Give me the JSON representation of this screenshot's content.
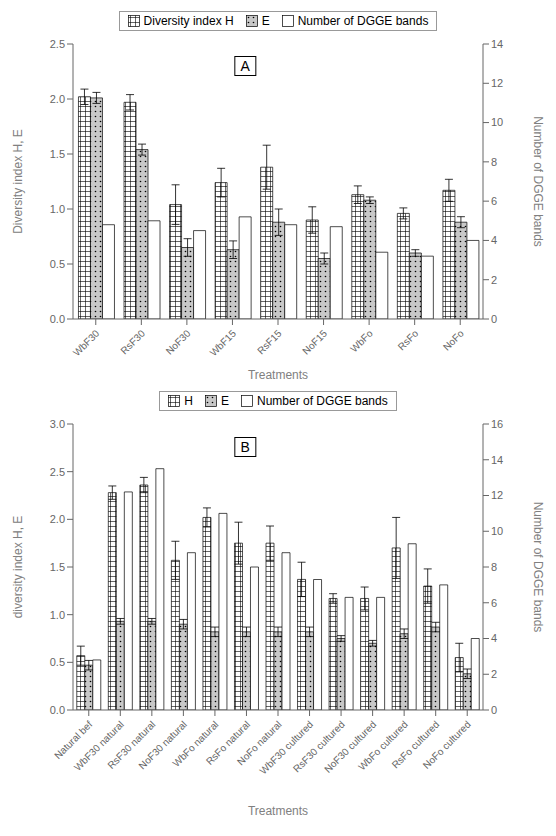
{
  "chart_data": [
    {
      "type": "bar",
      "title": "A",
      "xlabel": "Treatments",
      "ylabel": "Diversity index H, E",
      "y2label": "Number of DGGE bands",
      "categories": [
        "WbF30",
        "RsF30",
        "NoF30",
        "WbF15",
        "RsF15",
        "NoF15",
        "WbFo",
        "RsFo",
        "NoFo"
      ],
      "series": [
        {
          "name": "Diversity index H",
          "color": "#ffffff",
          "values": [
            2.02,
            1.97,
            1.04,
            1.24,
            1.38,
            0.9,
            1.13,
            0.96,
            1.17
          ],
          "errors": [
            0.07,
            0.07,
            0.18,
            0.13,
            0.2,
            0.12,
            0.08,
            0.05,
            0.1
          ]
        },
        {
          "name": "E",
          "color": "#c8c8c8",
          "values": [
            2.01,
            1.54,
            0.65,
            0.63,
            0.88,
            0.55,
            1.08,
            0.6,
            0.88
          ],
          "errors": [
            0.05,
            0.05,
            0.08,
            0.08,
            0.12,
            0.05,
            0.03,
            0.03,
            0.05
          ]
        },
        {
          "name": "Number of DGGE bands",
          "color": "#ffffff",
          "axis": "y2",
          "values": [
            4.8,
            5.0,
            4.5,
            5.2,
            4.8,
            4.7,
            3.4,
            3.2,
            4.0
          ]
        }
      ],
      "ylim": [
        0,
        2.5
      ],
      "yticks": [
        {
          "value": 0,
          "label": "0.0"
        },
        0.5,
        {
          "value": 1.0,
          "label": "1.0"
        },
        1.5,
        {
          "value": 2.0,
          "label": "2.0"
        },
        2.5
      ],
      "y2lim": [
        0,
        14
      ],
      "y2ticks": [
        0,
        2,
        4,
        6,
        8,
        10,
        12,
        14
      ],
      "grid": false,
      "legend": "top"
    },
    {
      "type": "bar",
      "title": "B",
      "xlabel": "Treatments",
      "ylabel": "diversity index H, E",
      "y2label": "Number of DGGE bands",
      "categories": [
        "Natural bef",
        "WbF30 natural",
        "RsF30 natural",
        "NoF30 natural",
        "WbFo natural",
        "RsFo natural",
        "NoFo natural",
        "WbF30 cultured",
        "RsF30 cultured",
        "NoF30 cultured",
        "WbFo cultured",
        "RsFo cultured",
        "NoFo cultured"
      ],
      "series": [
        {
          "name": "H",
          "color": "#ffffff",
          "values": [
            0.57,
            2.28,
            2.36,
            1.57,
            2.02,
            1.75,
            1.75,
            1.37,
            1.17,
            1.17,
            1.7,
            1.3,
            0.55
          ],
          "errors": [
            0.1,
            0.07,
            0.08,
            0.2,
            0.1,
            0.22,
            0.18,
            0.18,
            0.05,
            0.12,
            0.32,
            0.18,
            0.15
          ]
        },
        {
          "name": "E",
          "color": "#c8c8c8",
          "values": [
            0.47,
            0.93,
            0.93,
            0.9,
            0.82,
            0.82,
            0.82,
            0.82,
            0.75,
            0.7,
            0.8,
            0.87,
            0.38
          ],
          "errors": [
            0.05,
            0.03,
            0.03,
            0.05,
            0.05,
            0.05,
            0.05,
            0.05,
            0.03,
            0.03,
            0.05,
            0.05,
            0.05
          ]
        },
        {
          "name": "Number of DGGE bands",
          "color": "#ffffff",
          "axis": "y2",
          "values": [
            2.8,
            12.2,
            13.5,
            8.8,
            11.0,
            8.0,
            8.8,
            7.3,
            6.3,
            6.3,
            9.3,
            7.0,
            4.0
          ]
        }
      ],
      "ylim": [
        0,
        3
      ],
      "yticks": [
        {
          "value": 0,
          "label": "0.0"
        },
        0.5,
        {
          "value": 1.0,
          "label": "1.0"
        },
        1.5,
        {
          "value": 2.0,
          "label": "2.0"
        },
        2.5,
        {
          "value": 3.0,
          "label": "3.0"
        }
      ],
      "y2lim": [
        0,
        16
      ],
      "y2ticks": [
        0,
        2,
        4,
        6,
        8,
        10,
        12,
        14,
        16
      ],
      "grid": false,
      "legend": "top"
    }
  ]
}
